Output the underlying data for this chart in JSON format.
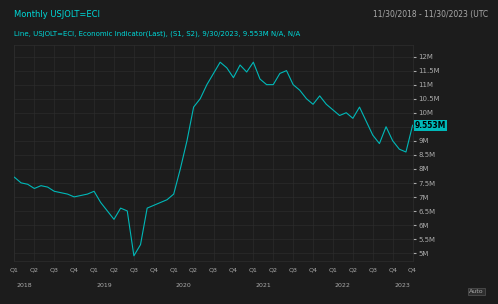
{
  "title_left": "Monthly USJOLT=ECI",
  "title_right": "11/30/2018 - 11/30/2023 (UTC",
  "subtitle": "Line, USJOLT=ECI, Economic Indicator(Last), (S1, S2), 9/30/2023, 9.553M N/A, N/A",
  "line_color": "#00b8b8",
  "background_color": "#1c1c1c",
  "grid_color": "#2e2e2e",
  "text_color": "#aaaaaa",
  "title_color": "#00d8d8",
  "last_value_label": "9.553M",
  "last_value_bg": "#00b8b8",
  "ylim": [
    4700000,
    12400000
  ],
  "yticks": [
    5000000,
    5500000,
    6000000,
    6500000,
    7000000,
    7500000,
    8000000,
    8500000,
    9000000,
    9500000,
    10000000,
    10500000,
    11000000,
    11500000,
    12000000
  ],
  "ytick_labels": [
    "5M",
    "5.5M",
    "6M",
    "6.5M",
    "7M",
    "7.5M",
    "8M",
    "8.5M",
    "9M",
    "9.5M",
    "10M",
    "10.5M",
    "11M",
    "11.5M",
    "12M"
  ],
  "data": [
    [
      0,
      7700000
    ],
    [
      1,
      7500000
    ],
    [
      2,
      7450000
    ],
    [
      3,
      7300000
    ],
    [
      4,
      7400000
    ],
    [
      5,
      7350000
    ],
    [
      6,
      7200000
    ],
    [
      7,
      7150000
    ],
    [
      8,
      7100000
    ],
    [
      9,
      7000000
    ],
    [
      10,
      7050000
    ],
    [
      11,
      7100000
    ],
    [
      12,
      7200000
    ],
    [
      13,
      6800000
    ],
    [
      14,
      6500000
    ],
    [
      15,
      6200000
    ],
    [
      16,
      6600000
    ],
    [
      17,
      6500000
    ],
    [
      18,
      4900000
    ],
    [
      19,
      5300000
    ],
    [
      20,
      6600000
    ],
    [
      21,
      6700000
    ],
    [
      22,
      6800000
    ],
    [
      23,
      6900000
    ],
    [
      24,
      7100000
    ],
    [
      25,
      8000000
    ],
    [
      26,
      9000000
    ],
    [
      27,
      10200000
    ],
    [
      28,
      10500000
    ],
    [
      29,
      11000000
    ],
    [
      30,
      11400000
    ],
    [
      31,
      11800000
    ],
    [
      32,
      11600000
    ],
    [
      33,
      11250000
    ],
    [
      34,
      11700000
    ],
    [
      35,
      11450000
    ],
    [
      36,
      11800000
    ],
    [
      37,
      11200000
    ],
    [
      38,
      11000000
    ],
    [
      39,
      11000000
    ],
    [
      40,
      11400000
    ],
    [
      41,
      11500000
    ],
    [
      42,
      11000000
    ],
    [
      43,
      10800000
    ],
    [
      44,
      10500000
    ],
    [
      45,
      10300000
    ],
    [
      46,
      10600000
    ],
    [
      47,
      10300000
    ],
    [
      48,
      10100000
    ],
    [
      49,
      9900000
    ],
    [
      50,
      10000000
    ],
    [
      51,
      9800000
    ],
    [
      52,
      10200000
    ],
    [
      53,
      9700000
    ],
    [
      54,
      9200000
    ],
    [
      55,
      8900000
    ],
    [
      56,
      9500000
    ],
    [
      57,
      9000000
    ],
    [
      58,
      8700000
    ],
    [
      59,
      8600000
    ],
    [
      60,
      9553000
    ]
  ],
  "quarter_ticks": [
    0,
    3,
    6,
    9,
    12,
    15,
    18,
    21,
    24,
    27,
    30,
    33,
    36,
    39,
    42,
    45,
    48,
    51,
    54,
    57,
    60
  ],
  "quarter_labels": [
    "Q1",
    "Q2",
    "Q3",
    "Q4",
    "Q1",
    "Q2",
    "Q3",
    "Q4",
    "Q1",
    "Q2",
    "Q3",
    "Q4",
    "Q1",
    "Q2",
    "Q3",
    "Q4",
    "Q1",
    "Q2",
    "Q3",
    "Q4",
    "Q4"
  ],
  "year_positions": [
    1.5,
    13.5,
    25.5,
    37.5,
    49.5,
    58.5
  ],
  "year_labels": [
    "2018",
    "2019",
    "2020",
    "2021",
    "2022",
    "2023"
  ]
}
